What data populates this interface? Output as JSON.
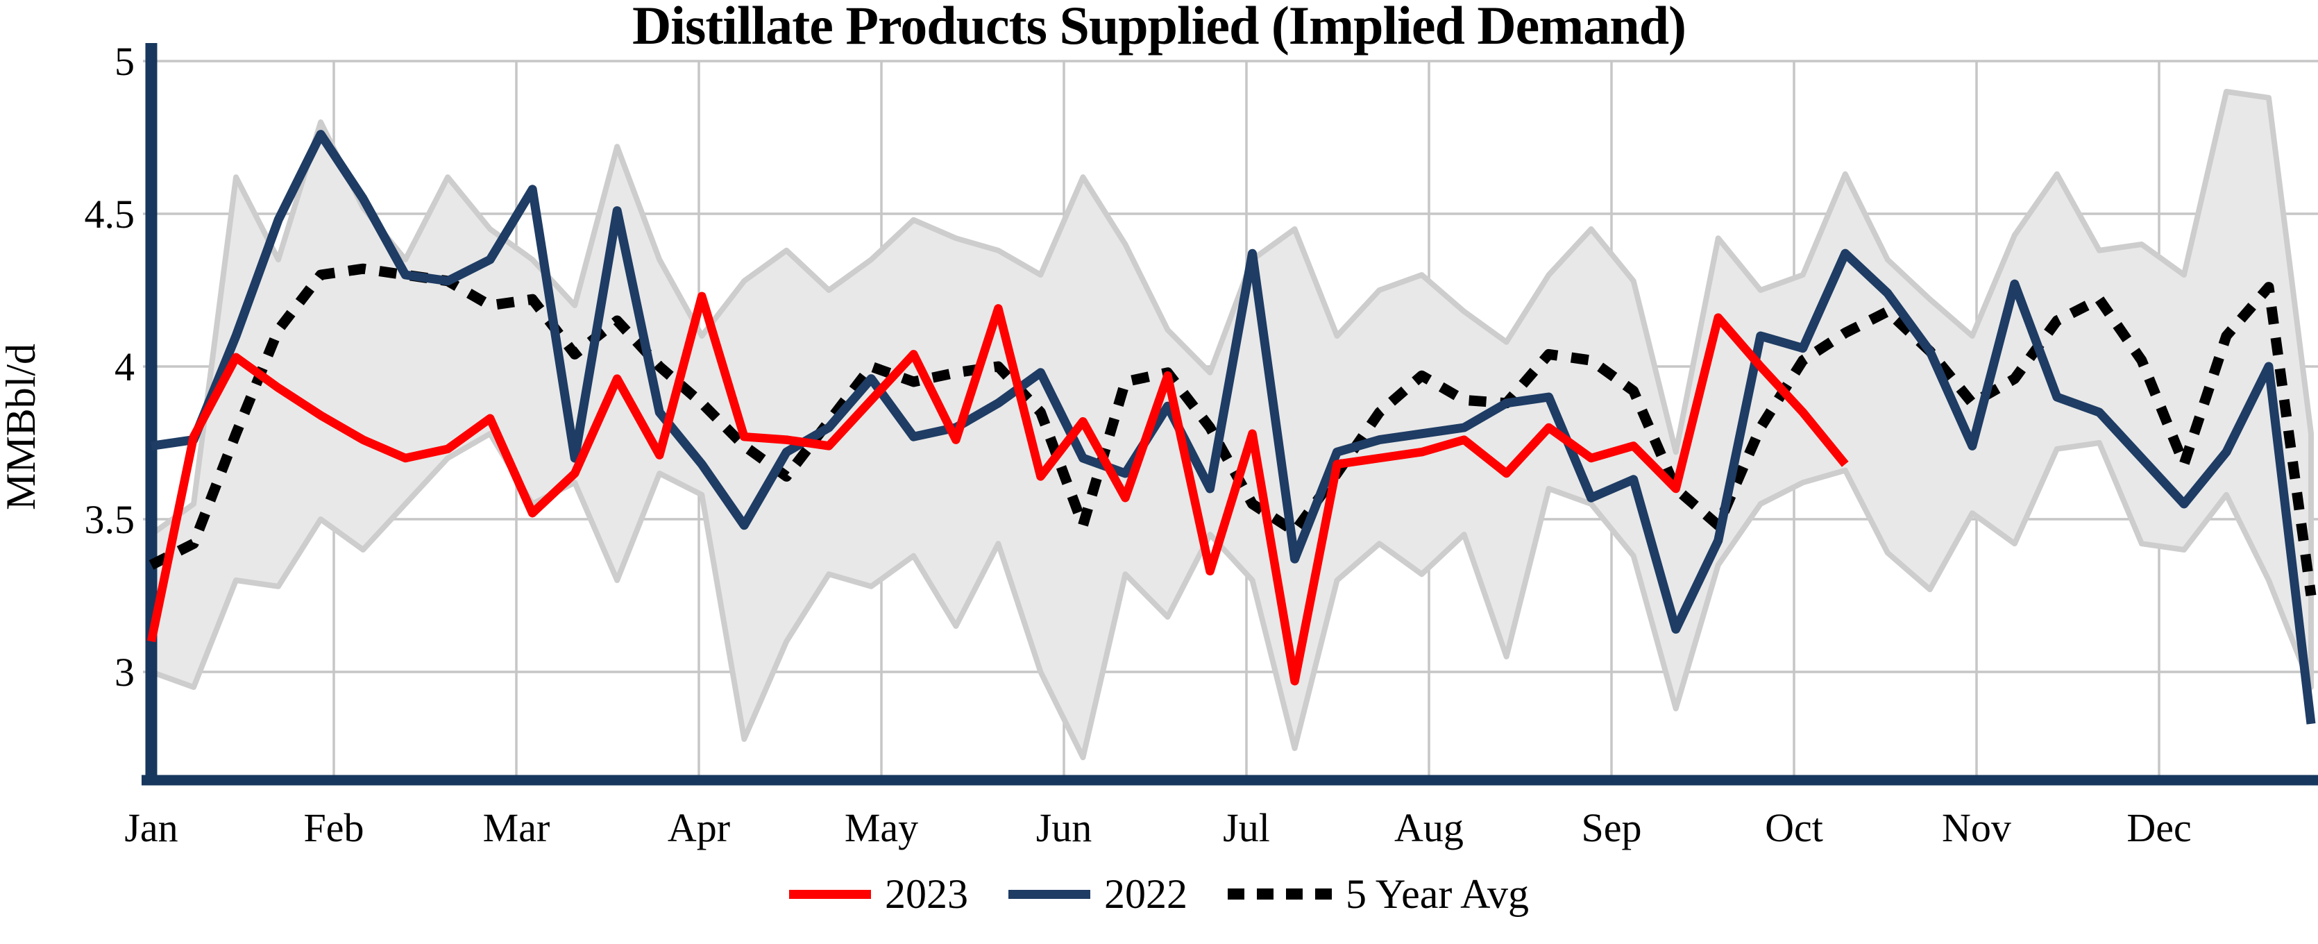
{
  "title": "Distillate Products Supplied (Implied Demand)",
  "y_axis": {
    "label": "MMBbl/d",
    "tick_labels": [
      "5",
      "4.5",
      "4",
      "3.5",
      "3"
    ],
    "tick_values": [
      5,
      4.5,
      4,
      3.5,
      3
    ]
  },
  "x_axis": {
    "month_labels": [
      "Jan",
      "Feb",
      "Mar",
      "Apr",
      "May",
      "Jun",
      "Jul",
      "Aug",
      "Sep",
      "Oct",
      "Nov",
      "Dec"
    ]
  },
  "legend": {
    "items": [
      {
        "label": "2023",
        "color": "#FE0000",
        "style": "solid"
      },
      {
        "label": "2022",
        "color": "#1E3C64",
        "style": "solid"
      },
      {
        "label": "5 Year Avg",
        "color": "#000000",
        "style": "dotted"
      }
    ]
  },
  "colors": {
    "series_2023": "#FE0000",
    "series_2022": "#1E3C64",
    "series_5yr": "#000000",
    "band_fill": "#E8E8E8",
    "band_edge": "#CDCDCD",
    "gridline": "#C6C6C6",
    "axis": "#17375E",
    "text": "#000000",
    "background": "#FFFFFF"
  },
  "chart_data": {
    "type": "line",
    "title": "Distillate Products Supplied (Implied Demand)",
    "xlabel": "",
    "ylabel": "MMBbl/d",
    "ylim": [
      2.7,
      5.05
    ],
    "x_unit": "week of year (52 weekly points, Jan through Dec)",
    "grid": "on",
    "legend_position": "bottom center",
    "x_tick_labels": [
      "Jan",
      "Feb",
      "Mar",
      "Apr",
      "May",
      "Jun",
      "Jul",
      "Aug",
      "Sep",
      "Oct",
      "Nov",
      "Dec"
    ],
    "band": {
      "name": "5-year range (shaded)",
      "upper": [
        3.45,
        3.55,
        4.62,
        4.35,
        4.8,
        4.52,
        4.35,
        4.62,
        4.45,
        4.35,
        4.2,
        4.72,
        4.35,
        4.1,
        4.28,
        4.38,
        4.25,
        4.35,
        4.48,
        4.42,
        4.38,
        4.3,
        4.62,
        4.4,
        4.12,
        3.98,
        4.35,
        4.45,
        4.1,
        4.25,
        4.3,
        4.18,
        4.08,
        4.3,
        4.45,
        4.28,
        3.72,
        4.42,
        4.25,
        4.3,
        4.63,
        4.35,
        4.22,
        4.1,
        4.43,
        4.63,
        4.38,
        4.4,
        4.3,
        4.9,
        4.88,
        3.78
      ],
      "lower": [
        3.0,
        2.95,
        3.3,
        3.28,
        3.5,
        3.4,
        3.55,
        3.7,
        3.78,
        3.55,
        3.62,
        3.3,
        3.65,
        3.58,
        2.78,
        3.1,
        3.32,
        3.28,
        3.38,
        3.15,
        3.42,
        3.0,
        2.72,
        3.32,
        3.18,
        3.45,
        3.3,
        2.75,
        3.3,
        3.42,
        3.32,
        3.45,
        3.05,
        3.6,
        3.55,
        3.38,
        2.88,
        3.35,
        3.55,
        3.62,
        3.66,
        3.39,
        3.27,
        3.52,
        3.42,
        3.73,
        3.75,
        3.42,
        3.4,
        3.58,
        3.3,
        2.95
      ]
    },
    "series": [
      {
        "name": "2023",
        "color": "#FE0000",
        "style": "solid",
        "values": [
          3.1,
          3.77,
          4.03,
          3.93,
          3.84,
          3.76,
          3.7,
          3.73,
          3.83,
          3.52,
          3.65,
          3.96,
          3.71,
          4.23,
          3.77,
          3.76,
          3.74,
          3.89,
          4.04,
          3.76,
          4.19,
          3.64,
          3.82,
          3.57,
          3.97,
          3.33,
          3.78,
          2.97,
          3.68,
          3.7,
          3.72,
          3.76,
          3.65,
          3.8,
          3.7,
          3.74,
          3.6,
          4.16,
          4.0,
          3.85,
          3.68
        ]
      },
      {
        "name": "2022",
        "color": "#1E3C64",
        "style": "solid",
        "values": [
          3.74,
          3.76,
          4.1,
          4.48,
          4.76,
          4.55,
          4.3,
          4.28,
          4.35,
          4.58,
          3.7,
          4.51,
          3.85,
          3.68,
          3.48,
          3.72,
          3.8,
          3.96,
          3.77,
          3.8,
          3.88,
          3.98,
          3.7,
          3.65,
          3.87,
          3.6,
          4.37,
          3.37,
          3.72,
          3.76,
          3.78,
          3.8,
          3.88,
          3.9,
          3.57,
          3.63,
          3.14,
          3.43,
          4.1,
          4.06,
          4.37,
          4.24,
          4.05,
          3.74,
          4.27,
          3.9,
          3.85,
          3.7,
          3.55,
          3.72,
          4.0,
          2.83
        ]
      },
      {
        "name": "5 Year Avg",
        "color": "#000000",
        "style": "dotted",
        "values": [
          3.35,
          3.42,
          3.78,
          4.12,
          4.3,
          4.32,
          4.3,
          4.28,
          4.2,
          4.22,
          4.04,
          4.15,
          4.0,
          3.88,
          3.74,
          3.64,
          3.82,
          4.0,
          3.95,
          3.98,
          4.0,
          3.85,
          3.48,
          3.95,
          3.98,
          3.8,
          3.55,
          3.46,
          3.65,
          3.85,
          3.97,
          3.89,
          3.88,
          4.04,
          4.02,
          3.92,
          3.6,
          3.48,
          3.8,
          4.02,
          4.11,
          4.18,
          4.05,
          3.88,
          3.96,
          4.15,
          4.22,
          4.02,
          3.68,
          4.1,
          4.26,
          3.25
        ]
      }
    ]
  }
}
